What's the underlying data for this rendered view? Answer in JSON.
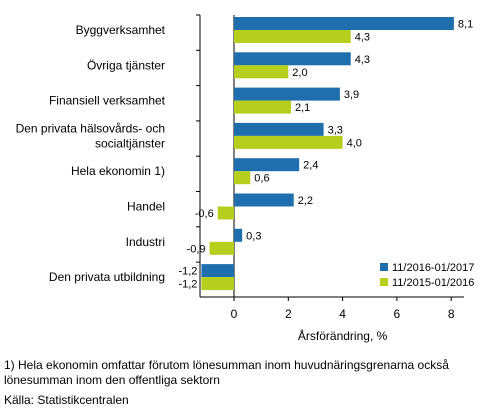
{
  "chart_data": {
    "type": "bar",
    "orientation": "horizontal",
    "categories": [
      [
        "Byggverksamhet"
      ],
      [
        "Övriga tjänster"
      ],
      [
        "Finansiell verksamhet"
      ],
      [
        "Den privata hälsovårds- och",
        "socialtjänster"
      ],
      [
        "Hela ekonomin 1)"
      ],
      [
        "Handel"
      ],
      [
        "Industri"
      ],
      [
        "Den privata utbildning"
      ]
    ],
    "series": [
      {
        "name": "11/2016-01/2017",
        "color": "#1f6fae",
        "values": [
          8.1,
          4.3,
          3.9,
          3.3,
          2.4,
          2.2,
          0.3,
          -1.2
        ],
        "labels": [
          "8,1",
          "4,3",
          "3,9",
          "3,3",
          "2,4",
          "2,2",
          "0,3",
          "-1,2"
        ]
      },
      {
        "name": "11/2015-01/2016",
        "color": "#b5cf1c",
        "values": [
          4.3,
          2.0,
          2.1,
          4.0,
          0.6,
          -0.6,
          -0.9,
          -1.2
        ],
        "labels": [
          "4,3",
          "2,0",
          "2,1",
          "4,0",
          "0,6",
          "-0,6",
          "-0,9",
          "-1,2"
        ]
      }
    ],
    "xlabel": "Årsförändring, %",
    "xlim": [
      -1.2,
      8.6
    ],
    "ticks": [
      0,
      2,
      4,
      6,
      8
    ],
    "tick_labels": [
      "0",
      "2",
      "4",
      "6",
      "8"
    ],
    "grid": false,
    "legend_position": "bottom-right"
  },
  "notes": {
    "footnote_line1": "1) Hela ekonomin omfattar förutom lönesumman inom huvudnäringsgrenarna också",
    "footnote_line2": "lönesumman inom den offentliga sektorn",
    "source": "Källa: Statistikcentralen"
  }
}
